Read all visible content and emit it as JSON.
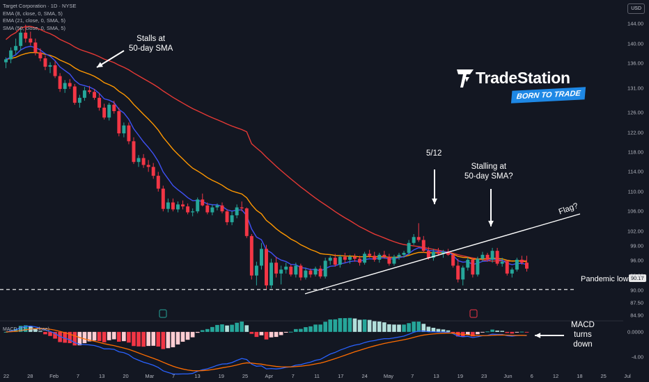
{
  "legend": {
    "title": "Target Corporation · 1D · NYSE",
    "ema8": "EMA (8, close, 0, SMA, 5)",
    "ema21": "EMA (21, close, 0, SMA, 5)",
    "sma50": "SMA (50, close, 0, SMA, 5)"
  },
  "currency": "USD",
  "brand": {
    "name": "TradeStation",
    "tagline": "BORN TO TRADE"
  },
  "annotations": {
    "stalls": "Stalls at\n50-day SMA",
    "may12": "5/12",
    "stalling": "Stalling at\n50-day SMA?",
    "flag": "Flag?",
    "pandemic": "Pandemic low",
    "pandemic_value": "90.17",
    "macd": "MACD\nturns\ndown"
  },
  "macd_label": "MACD (12, 26, close)",
  "colors": {
    "up": "#26a69a",
    "down": "#f23645",
    "ema8": "#3f51f5",
    "ema21": "#ff9800",
    "sma50": "#e53935",
    "macd": "#2962ff",
    "signal": "#ff6d00"
  },
  "chart_data": [
    {
      "type": "candlestick",
      "title": "Target Corporation · 1D · NYSE",
      "y_axis": {
        "range": [
          85.5,
          146
        ],
        "ticks": [
          "144.00",
          "140.00",
          "136.00",
          "131.00",
          "126.00",
          "122.00",
          "118.00",
          "114.00",
          "110.00",
          "106.00",
          "102.00",
          "99.00",
          "96.00",
          "93.00",
          "90.00",
          "87.50",
          "84.90"
        ]
      },
      "x_axis": {
        "ticks": [
          "22",
          "28",
          "Feb",
          "7",
          "13",
          "20",
          "Mar",
          "7",
          "13",
          "19",
          "25",
          "Apr",
          "7",
          "11",
          "17",
          "24",
          "May",
          "7",
          "13",
          "19",
          "23",
          "Jun",
          "6",
          "12",
          "18",
          "25",
          "Jul"
        ]
      },
      "candles": [
        {
          "o": 136.2,
          "h": 137.2,
          "l": 135.0,
          "c": 136.8
        },
        {
          "o": 136.8,
          "h": 139.2,
          "l": 136.0,
          "c": 138.6
        },
        {
          "o": 138.6,
          "h": 141.0,
          "l": 137.8,
          "c": 139.5
        },
        {
          "o": 139.5,
          "h": 143.2,
          "l": 138.6,
          "c": 142.2
        },
        {
          "o": 142.2,
          "h": 143.8,
          "l": 140.2,
          "c": 141.0
        },
        {
          "o": 141.0,
          "h": 142.4,
          "l": 139.6,
          "c": 140.2
        },
        {
          "o": 140.2,
          "h": 141.0,
          "l": 137.6,
          "c": 138.2
        },
        {
          "o": 138.2,
          "h": 139.0,
          "l": 136.4,
          "c": 137.0
        },
        {
          "o": 137.0,
          "h": 137.6,
          "l": 134.6,
          "c": 135.3
        },
        {
          "o": 135.3,
          "h": 136.2,
          "l": 134.0,
          "c": 135.6
        },
        {
          "o": 135.6,
          "h": 136.4,
          "l": 133.0,
          "c": 133.4
        },
        {
          "o": 133.4,
          "h": 134.0,
          "l": 130.2,
          "c": 130.8
        },
        {
          "o": 130.8,
          "h": 132.6,
          "l": 130.0,
          "c": 132.0
        },
        {
          "o": 132.0,
          "h": 132.8,
          "l": 130.8,
          "c": 131.3
        },
        {
          "o": 131.3,
          "h": 131.8,
          "l": 127.6,
          "c": 128.0
        },
        {
          "o": 128.0,
          "h": 129.6,
          "l": 127.0,
          "c": 129.0
        },
        {
          "o": 129.0,
          "h": 131.2,
          "l": 128.4,
          "c": 130.5
        },
        {
          "o": 130.5,
          "h": 131.4,
          "l": 129.8,
          "c": 130.2
        },
        {
          "o": 130.2,
          "h": 130.8,
          "l": 128.6,
          "c": 129.0
        },
        {
          "o": 129.0,
          "h": 130.0,
          "l": 126.4,
          "c": 127.0
        },
        {
          "o": 127.0,
          "h": 127.8,
          "l": 124.6,
          "c": 125.0
        },
        {
          "o": 125.0,
          "h": 128.0,
          "l": 124.4,
          "c": 127.6
        },
        {
          "o": 127.6,
          "h": 128.4,
          "l": 125.8,
          "c": 126.3
        },
        {
          "o": 126.3,
          "h": 127.0,
          "l": 121.2,
          "c": 121.8
        },
        {
          "o": 121.8,
          "h": 124.0,
          "l": 121.0,
          "c": 123.4
        },
        {
          "o": 123.4,
          "h": 124.0,
          "l": 119.6,
          "c": 120.2
        },
        {
          "o": 120.2,
          "h": 121.0,
          "l": 115.6,
          "c": 116.0
        },
        {
          "o": 116.0,
          "h": 117.4,
          "l": 115.0,
          "c": 116.8
        },
        {
          "o": 116.8,
          "h": 117.6,
          "l": 114.8,
          "c": 115.4
        },
        {
          "o": 115.4,
          "h": 116.4,
          "l": 114.0,
          "c": 115.0
        },
        {
          "o": 115.0,
          "h": 115.8,
          "l": 112.6,
          "c": 113.2
        },
        {
          "o": 113.2,
          "h": 114.0,
          "l": 110.0,
          "c": 110.6
        },
        {
          "o": 110.6,
          "h": 111.2,
          "l": 106.0,
          "c": 106.5
        },
        {
          "o": 106.5,
          "h": 108.6,
          "l": 105.8,
          "c": 107.8
        },
        {
          "o": 107.8,
          "h": 108.6,
          "l": 106.0,
          "c": 106.4
        },
        {
          "o": 106.4,
          "h": 108.0,
          "l": 105.8,
          "c": 107.4
        },
        {
          "o": 107.4,
          "h": 108.2,
          "l": 106.4,
          "c": 107.0
        },
        {
          "o": 107.0,
          "h": 107.6,
          "l": 105.4,
          "c": 105.8
        },
        {
          "o": 105.8,
          "h": 106.6,
          "l": 105.0,
          "c": 106.0
        },
        {
          "o": 106.0,
          "h": 108.8,
          "l": 105.6,
          "c": 108.4
        },
        {
          "o": 108.4,
          "h": 109.6,
          "l": 107.0,
          "c": 107.2
        },
        {
          "o": 107.2,
          "h": 107.8,
          "l": 105.4,
          "c": 105.8
        },
        {
          "o": 105.8,
          "h": 107.4,
          "l": 105.2,
          "c": 106.8
        },
        {
          "o": 106.8,
          "h": 107.6,
          "l": 106.2,
          "c": 107.2
        },
        {
          "o": 107.2,
          "h": 107.8,
          "l": 105.6,
          "c": 106.0
        },
        {
          "o": 106.0,
          "h": 106.4,
          "l": 103.2,
          "c": 103.8
        },
        {
          "o": 103.8,
          "h": 106.0,
          "l": 103.2,
          "c": 105.2
        },
        {
          "o": 105.2,
          "h": 107.4,
          "l": 104.6,
          "c": 106.8
        },
        {
          "o": 106.8,
          "h": 108.0,
          "l": 106.0,
          "c": 106.6
        },
        {
          "o": 106.6,
          "h": 106.8,
          "l": 100.6,
          "c": 101.0
        },
        {
          "o": 101.0,
          "h": 101.4,
          "l": 92.2,
          "c": 93.0
        },
        {
          "o": 93.0,
          "h": 95.8,
          "l": 91.0,
          "c": 95.0
        },
        {
          "o": 95.0,
          "h": 99.6,
          "l": 94.2,
          "c": 98.4
        },
        {
          "o": 98.4,
          "h": 99.2,
          "l": 90.2,
          "c": 91.0
        },
        {
          "o": 91.0,
          "h": 96.4,
          "l": 90.4,
          "c": 95.6
        },
        {
          "o": 95.6,
          "h": 96.8,
          "l": 92.6,
          "c": 93.4
        },
        {
          "o": 93.4,
          "h": 95.0,
          "l": 91.2,
          "c": 94.2
        },
        {
          "o": 94.2,
          "h": 95.6,
          "l": 93.4,
          "c": 94.8
        },
        {
          "o": 94.8,
          "h": 95.2,
          "l": 92.8,
          "c": 93.2
        },
        {
          "o": 93.2,
          "h": 95.6,
          "l": 92.6,
          "c": 95.0
        },
        {
          "o": 95.0,
          "h": 95.4,
          "l": 92.0,
          "c": 92.6
        },
        {
          "o": 92.6,
          "h": 94.6,
          "l": 92.2,
          "c": 94.0
        },
        {
          "o": 94.0,
          "h": 94.4,
          "l": 92.6,
          "c": 93.2
        },
        {
          "o": 93.2,
          "h": 94.8,
          "l": 92.8,
          "c": 94.4
        },
        {
          "o": 94.4,
          "h": 95.0,
          "l": 92.4,
          "c": 92.8
        },
        {
          "o": 92.8,
          "h": 96.6,
          "l": 92.4,
          "c": 96.0
        },
        {
          "o": 96.0,
          "h": 97.0,
          "l": 95.2,
          "c": 96.6
        },
        {
          "o": 96.6,
          "h": 97.4,
          "l": 94.8,
          "c": 95.2
        },
        {
          "o": 95.2,
          "h": 97.2,
          "l": 94.6,
          "c": 96.8
        },
        {
          "o": 96.8,
          "h": 97.6,
          "l": 95.6,
          "c": 96.2
        },
        {
          "o": 96.2,
          "h": 97.2,
          "l": 95.4,
          "c": 96.8
        },
        {
          "o": 96.8,
          "h": 97.4,
          "l": 95.8,
          "c": 96.4
        },
        {
          "o": 96.4,
          "h": 97.0,
          "l": 95.0,
          "c": 95.6
        },
        {
          "o": 95.6,
          "h": 97.8,
          "l": 95.2,
          "c": 97.4
        },
        {
          "o": 97.4,
          "h": 98.2,
          "l": 96.6,
          "c": 97.0
        },
        {
          "o": 97.0,
          "h": 97.8,
          "l": 95.8,
          "c": 96.2
        },
        {
          "o": 96.2,
          "h": 97.6,
          "l": 95.6,
          "c": 97.2
        },
        {
          "o": 97.2,
          "h": 98.0,
          "l": 96.4,
          "c": 96.8
        },
        {
          "o": 96.8,
          "h": 97.4,
          "l": 95.0,
          "c": 95.4
        },
        {
          "o": 95.4,
          "h": 97.2,
          "l": 95.0,
          "c": 96.8
        },
        {
          "o": 96.8,
          "h": 97.6,
          "l": 96.2,
          "c": 97.2
        },
        {
          "o": 97.2,
          "h": 98.0,
          "l": 96.6,
          "c": 97.6
        },
        {
          "o": 97.6,
          "h": 100.2,
          "l": 97.2,
          "c": 99.6
        },
        {
          "o": 99.6,
          "h": 101.4,
          "l": 99.2,
          "c": 100.8
        },
        {
          "o": 100.8,
          "h": 103.6,
          "l": 99.8,
          "c": 100.2
        },
        {
          "o": 100.2,
          "h": 101.0,
          "l": 97.6,
          "c": 98.0
        },
        {
          "o": 98.0,
          "h": 98.8,
          "l": 96.2,
          "c": 96.6
        },
        {
          "o": 96.6,
          "h": 98.4,
          "l": 96.0,
          "c": 97.8
        },
        {
          "o": 97.8,
          "h": 98.6,
          "l": 97.0,
          "c": 97.4
        },
        {
          "o": 97.4,
          "h": 98.2,
          "l": 96.6,
          "c": 97.8
        },
        {
          "o": 97.8,
          "h": 98.4,
          "l": 97.0,
          "c": 97.2
        },
        {
          "o": 97.2,
          "h": 97.6,
          "l": 94.6,
          "c": 95.0
        },
        {
          "o": 95.0,
          "h": 96.4,
          "l": 91.6,
          "c": 92.2
        },
        {
          "o": 92.2,
          "h": 95.0,
          "l": 91.0,
          "c": 94.6
        },
        {
          "o": 94.6,
          "h": 96.8,
          "l": 94.0,
          "c": 96.2
        },
        {
          "o": 96.2,
          "h": 96.6,
          "l": 92.6,
          "c": 93.2
        },
        {
          "o": 93.2,
          "h": 96.8,
          "l": 92.8,
          "c": 96.4
        },
        {
          "o": 96.4,
          "h": 97.8,
          "l": 95.8,
          "c": 97.2
        },
        {
          "o": 97.2,
          "h": 97.6,
          "l": 95.8,
          "c": 96.2
        },
        {
          "o": 96.2,
          "h": 98.6,
          "l": 95.6,
          "c": 98.0
        },
        {
          "o": 98.0,
          "h": 98.6,
          "l": 95.0,
          "c": 95.4
        },
        {
          "o": 95.4,
          "h": 96.6,
          "l": 94.8,
          "c": 95.8
        },
        {
          "o": 95.8,
          "h": 96.2,
          "l": 93.0,
          "c": 93.4
        },
        {
          "o": 93.4,
          "h": 94.6,
          "l": 92.6,
          "c": 94.2
        },
        {
          "o": 94.2,
          "h": 96.6,
          "l": 93.8,
          "c": 96.2
        },
        {
          "o": 96.2,
          "h": 97.0,
          "l": 95.2,
          "c": 95.6
        },
        {
          "o": 95.6,
          "h": 97.0,
          "l": 93.8,
          "c": 94.4
        }
      ]
    },
    {
      "type": "line",
      "title": "MACD (12, 26, close)",
      "y_axis": {
        "range": [
          -5.5,
          1.3
        ],
        "ticks": [
          "0.0000",
          "-4.00"
        ]
      }
    }
  ]
}
